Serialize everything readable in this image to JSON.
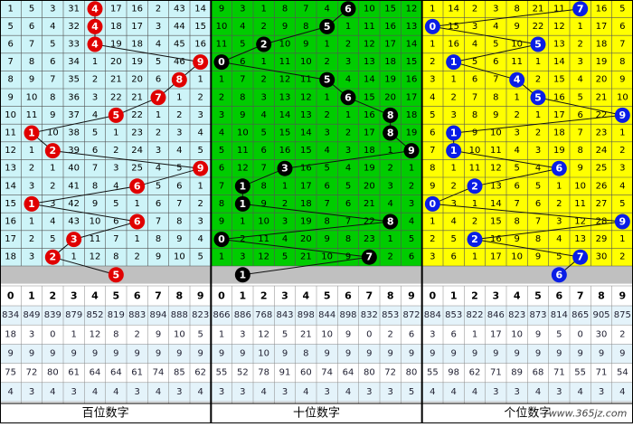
{
  "digits": [
    0,
    1,
    2,
    3,
    4,
    5,
    6,
    7,
    8,
    9
  ],
  "watermark": "www.365jz.com",
  "panels": [
    {
      "title": "百位数字",
      "extra_ball": 5,
      "ball_cols": [
        4,
        4,
        4,
        9,
        8,
        7,
        5,
        1,
        2,
        9,
        6,
        1,
        6,
        3,
        2
      ],
      "rows": [
        [
          1,
          5,
          3,
          31,
          4,
          17,
          16,
          2,
          43,
          14
        ],
        [
          5,
          6,
          4,
          32,
          4,
          18,
          17,
          3,
          44,
          15
        ],
        [
          6,
          7,
          5,
          33,
          4,
          19,
          18,
          4,
          45,
          16
        ],
        [
          7,
          8,
          6,
          34,
          1,
          20,
          19,
          5,
          46,
          9
        ],
        [
          8,
          9,
          7,
          35,
          2,
          21,
          20,
          6,
          8,
          1
        ],
        [
          9,
          10,
          8,
          36,
          3,
          22,
          21,
          7,
          1,
          2
        ],
        [
          10,
          11,
          9,
          37,
          4,
          5,
          22,
          1,
          2,
          3
        ],
        [
          11,
          1,
          10,
          38,
          5,
          1,
          23,
          2,
          3,
          4
        ],
        [
          12,
          1,
          2,
          39,
          6,
          2,
          24,
          3,
          4,
          5
        ],
        [
          13,
          2,
          1,
          40,
          7,
          3,
          25,
          4,
          5,
          9
        ],
        [
          14,
          3,
          2,
          41,
          8,
          4,
          6,
          5,
          6,
          1
        ],
        [
          15,
          1,
          3,
          42,
          9,
          5,
          1,
          6,
          7,
          2
        ],
        [
          16,
          1,
          4,
          43,
          10,
          6,
          6,
          7,
          8,
          3
        ],
        [
          17,
          2,
          5,
          3,
          11,
          7,
          1,
          8,
          9,
          4
        ],
        [
          18,
          3,
          2,
          1,
          12,
          8,
          2,
          9,
          10,
          5
        ]
      ],
      "stats": [
        [
          834,
          849,
          839,
          879,
          852,
          819,
          883,
          894,
          888,
          823
        ],
        [
          18,
          3,
          0,
          1,
          12,
          8,
          2,
          9,
          10,
          5
        ],
        [
          9,
          9,
          9,
          9,
          9,
          9,
          9,
          9,
          9,
          9
        ],
        [
          75,
          72,
          80,
          61,
          64,
          64,
          61,
          74,
          85,
          62
        ],
        [
          4,
          3,
          4,
          3,
          4,
          4,
          3,
          4,
          3,
          4
        ]
      ]
    },
    {
      "title": "十位数字",
      "extra_ball": 1,
      "ball_cols": [
        6,
        5,
        2,
        0,
        5,
        6,
        8,
        8,
        9,
        3,
        1,
        1,
        8,
        0,
        7
      ],
      "rows": [
        [
          9,
          3,
          1,
          8,
          7,
          4,
          6,
          10,
          15,
          12
        ],
        [
          10,
          4,
          2,
          9,
          8,
          5,
          1,
          11,
          16,
          13
        ],
        [
          11,
          5,
          2,
          10,
          9,
          1,
          2,
          12,
          17,
          14
        ],
        [
          0,
          6,
          1,
          11,
          10,
          2,
          3,
          13,
          18,
          15
        ],
        [
          1,
          7,
          2,
          12,
          11,
          5,
          4,
          14,
          19,
          16
        ],
        [
          2,
          8,
          3,
          13,
          12,
          1,
          6,
          15,
          20,
          17
        ],
        [
          3,
          9,
          4,
          14,
          13,
          2,
          1,
          16,
          8,
          18
        ],
        [
          4,
          10,
          5,
          15,
          14,
          3,
          2,
          17,
          8,
          19
        ],
        [
          5,
          11,
          6,
          16,
          15,
          4,
          3,
          18,
          1,
          9
        ],
        [
          6,
          12,
          7,
          3,
          16,
          5,
          4,
          19,
          2,
          1
        ],
        [
          7,
          1,
          8,
          1,
          17,
          6,
          5,
          20,
          3,
          2
        ],
        [
          8,
          1,
          9,
          2,
          18,
          7,
          6,
          21,
          4,
          3
        ],
        [
          9,
          1,
          10,
          3,
          19,
          8,
          7,
          22,
          8,
          4
        ],
        [
          0,
          2,
          11,
          4,
          20,
          9,
          8,
          23,
          1,
          5
        ],
        [
          1,
          3,
          12,
          5,
          21,
          10,
          9,
          7,
          2,
          6
        ]
      ],
      "stats": [
        [
          866,
          886,
          768,
          843,
          898,
          844,
          898,
          832,
          853,
          872
        ],
        [
          1,
          3,
          12,
          5,
          21,
          10,
          9,
          0,
          2,
          6
        ],
        [
          9,
          9,
          10,
          9,
          8,
          9,
          9,
          9,
          9,
          9
        ],
        [
          55,
          52,
          78,
          91,
          60,
          74,
          64,
          80,
          72,
          80
        ],
        [
          3,
          3,
          4,
          3,
          4,
          3,
          4,
          3,
          3,
          5
        ]
      ]
    },
    {
      "title": "个位数字",
      "extra_ball": 6,
      "ball_cols": [
        7,
        0,
        5,
        1,
        4,
        5,
        9,
        1,
        1,
        6,
        2,
        0,
        9,
        2,
        7
      ],
      "rows": [
        [
          1,
          14,
          2,
          3,
          8,
          21,
          11,
          7,
          16,
          5
        ],
        [
          0,
          15,
          3,
          4,
          9,
          22,
          12,
          1,
          17,
          6
        ],
        [
          1,
          16,
          4,
          5,
          10,
          5,
          13,
          2,
          18,
          7
        ],
        [
          2,
          1,
          5,
          6,
          11,
          1,
          14,
          3,
          19,
          8
        ],
        [
          3,
          1,
          6,
          7,
          4,
          2,
          15,
          4,
          20,
          9
        ],
        [
          4,
          2,
          7,
          8,
          1,
          5,
          16,
          5,
          21,
          10
        ],
        [
          5,
          3,
          8,
          9,
          2,
          1,
          17,
          6,
          22,
          9
        ],
        [
          6,
          1,
          9,
          10,
          3,
          2,
          18,
          7,
          23,
          1
        ],
        [
          7,
          1,
          10,
          11,
          4,
          3,
          19,
          8,
          24,
          2
        ],
        [
          8,
          1,
          11,
          12,
          5,
          4,
          6,
          9,
          25,
          3
        ],
        [
          9,
          2,
          2,
          13,
          6,
          5,
          1,
          10,
          26,
          4
        ],
        [
          0,
          3,
          1,
          14,
          7,
          6,
          2,
          11,
          27,
          5
        ],
        [
          1,
          4,
          2,
          15,
          8,
          7,
          3,
          12,
          28,
          9
        ],
        [
          2,
          5,
          2,
          16,
          9,
          8,
          4,
          13,
          29,
          1
        ],
        [
          3,
          6,
          1,
          17,
          10,
          9,
          5,
          7,
          30,
          2
        ]
      ],
      "stats": [
        [
          884,
          853,
          822,
          846,
          823,
          873,
          814,
          865,
          905,
          875
        ],
        [
          3,
          6,
          1,
          17,
          10,
          9,
          5,
          0,
          30,
          2
        ],
        [
          9,
          9,
          9,
          9,
          9,
          9,
          9,
          9,
          9,
          9
        ],
        [
          55,
          98,
          62,
          71,
          89,
          68,
          71,
          55,
          71,
          54
        ],
        [
          4,
          4,
          4,
          3,
          3,
          4,
          3,
          4,
          3,
          4
        ]
      ]
    }
  ]
}
